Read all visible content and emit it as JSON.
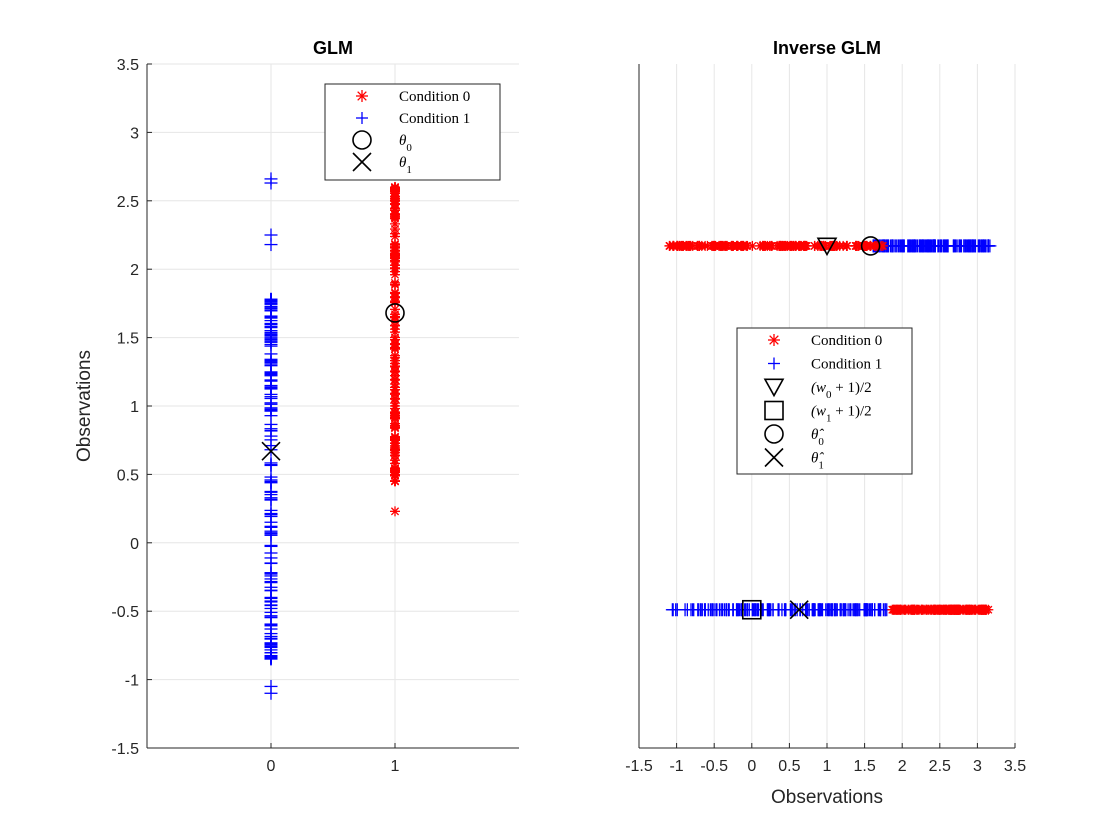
{
  "chart_data": [
    {
      "type": "scatter",
      "title": "GLM",
      "ylabel": "Observations",
      "xlim": [
        -1,
        2
      ],
      "ylim": [
        -1.5,
        3.5
      ],
      "xticks": [
        "0",
        "1"
      ],
      "yticks": [
        "-1.5",
        "-1",
        "-0.5",
        "0",
        "0.5",
        "1",
        "1.5",
        "2",
        "2.5",
        "3",
        "3.5"
      ],
      "grid": true,
      "legend_position": "top-right",
      "series": [
        {
          "name": "Condition 0",
          "marker": "asterisk",
          "color": "#ff0000",
          "x": 1,
          "y_range": [
            0.45,
            2.6
          ],
          "outliers": [
            0.23
          ]
        },
        {
          "name": "Condition 1",
          "marker": "plus",
          "color": "#0000ff",
          "x": 0,
          "y_range": [
            -0.85,
            1.78
          ],
          "outliers": [
            -1.05,
            -1.1,
            2.18,
            2.25,
            2.63,
            2.66
          ]
        },
        {
          "name": "θ0",
          "marker": "circle",
          "color": "#000000",
          "points": [
            [
              1,
              1.68
            ]
          ]
        },
        {
          "name": "θ1",
          "marker": "x",
          "color": "#000000",
          "points": [
            [
              0,
              0.67
            ]
          ]
        }
      ]
    },
    {
      "type": "scatter",
      "title": "Inverse GLM",
      "xlabel": "Observations",
      "xlim": [
        -1.5,
        3.5
      ],
      "ylim": [
        -1.2,
        3.5
      ],
      "xticks": [
        "-1.5",
        "-1",
        "-0.5",
        "0",
        "0.5",
        "1",
        "1.5",
        "2",
        "2.5",
        "3",
        "3.5"
      ],
      "grid": true,
      "legend_position": "center",
      "series": [
        {
          "name": "Condition 0",
          "marker": "asterisk",
          "color": "#ff0000",
          "rows": [
            {
              "y": 2.25,
              "x_range": [
                -1.1,
                1.8
              ]
            },
            {
              "y": -0.25,
              "x_range": [
                1.85,
                3.15
              ]
            }
          ]
        },
        {
          "name": "Condition 1",
          "marker": "plus",
          "color": "#0000ff",
          "rows": [
            {
              "y": 2.25,
              "x_range": [
                1.6,
                3.2
              ]
            },
            {
              "y": -0.25,
              "x_range": [
                -1.1,
                1.8
              ]
            }
          ]
        },
        {
          "name": "(w0+1)/2",
          "marker": "triangle-down",
          "color": "#000000",
          "points": [
            [
              1.0,
              2.25
            ]
          ]
        },
        {
          "name": "(w1+1)/2",
          "marker": "square",
          "color": "#000000",
          "points": [
            [
              0.0,
              -0.25
            ]
          ]
        },
        {
          "name": "θ̂0",
          "marker": "circle",
          "color": "#000000",
          "points": [
            [
              1.58,
              2.25
            ]
          ]
        },
        {
          "name": "θ̂1",
          "marker": "x",
          "color": "#000000",
          "points": [
            [
              0.63,
              -0.25
            ]
          ]
        }
      ]
    }
  ],
  "legend_left": {
    "items": [
      {
        "label": "Condition 0",
        "marker": "asterisk",
        "color": "#ff0000"
      },
      {
        "label": "Condition 1",
        "marker": "plus",
        "color": "#0000ff"
      },
      {
        "label": "θ",
        "sub": "0",
        "marker": "circle",
        "color": "#000000"
      },
      {
        "label": "θ",
        "sub": "1",
        "marker": "x",
        "color": "#000000"
      }
    ]
  },
  "legend_right": {
    "items": [
      {
        "label": "Condition 0",
        "marker": "asterisk",
        "color": "#ff0000"
      },
      {
        "label": "Condition 1",
        "marker": "plus",
        "color": "#0000ff"
      },
      {
        "label": "(w",
        "sub": "0",
        "tail": " + 1)/2",
        "marker": "triangle-down",
        "color": "#000000"
      },
      {
        "label": "(w",
        "sub": "1",
        "tail": " + 1)/2",
        "marker": "square",
        "color": "#000000"
      },
      {
        "label": "θ̂",
        "sub": "0",
        "marker": "circle",
        "color": "#000000"
      },
      {
        "label": "θ̂",
        "sub": "1",
        "marker": "x",
        "color": "#000000"
      }
    ]
  }
}
